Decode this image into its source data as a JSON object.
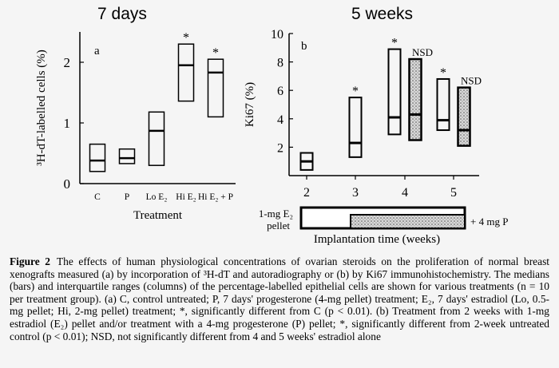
{
  "panel_titles": {
    "left": "7 days",
    "right": "5 weeks"
  },
  "chart_data": [
    {
      "type": "box",
      "panel_letter": "a",
      "ylabel": "³H-dT-labelled cells (%)",
      "xlabel": "Treatment",
      "ylim": [
        0,
        2.5
      ],
      "yticks": [
        0,
        1,
        2
      ],
      "categories": [
        "C",
        "P",
        "Lo E₂",
        "Hi E₂",
        "Hi E₂ + P"
      ],
      "boxes": [
        {
          "q1": 0.2,
          "median": 0.38,
          "q3": 0.65,
          "sig": ""
        },
        {
          "q1": 0.33,
          "median": 0.42,
          "q3": 0.57,
          "sig": ""
        },
        {
          "q1": 0.3,
          "median": 0.87,
          "q3": 1.18,
          "sig": ""
        },
        {
          "q1": 1.36,
          "median": 1.95,
          "q3": 2.3,
          "sig": "*"
        },
        {
          "q1": 1.1,
          "median": 1.83,
          "q3": 2.05,
          "sig": "*"
        }
      ]
    },
    {
      "type": "box",
      "panel_letter": "b",
      "ylabel": "Ki67 (%)",
      "xlabel": "Implantation time (weeks)",
      "ylim": [
        0,
        10
      ],
      "yticks": [
        2,
        4,
        6,
        8,
        10
      ],
      "categories": [
        "2",
        "3",
        "4",
        "5"
      ],
      "boxes": [
        {
          "group": "2",
          "q1": 0.4,
          "median": 1.0,
          "q3": 1.6,
          "shaded": false,
          "sig": ""
        },
        {
          "group": "3",
          "q1": 1.3,
          "median": 2.3,
          "q3": 5.5,
          "shaded": false,
          "sig": "*"
        },
        {
          "group": "4",
          "q1": 2.9,
          "median": 4.1,
          "q3": 8.9,
          "shaded": false,
          "sig": "*"
        },
        {
          "group": "4",
          "q1": 2.5,
          "median": 4.3,
          "q3": 8.2,
          "shaded": true,
          "sig": "NSD"
        },
        {
          "group": "5",
          "q1": 3.2,
          "median": 3.9,
          "q3": 6.8,
          "shaded": false,
          "sig": "*"
        },
        {
          "group": "5",
          "q1": 2.1,
          "median": 3.2,
          "q3": 6.2,
          "shaded": true,
          "sig": "NSD"
        }
      ],
      "treatment_bar": {
        "left_label_1": "1-mg E₂",
        "left_label_2": "pellet",
        "right_label": "+ 4 mg P"
      }
    }
  ],
  "caption": {
    "figure_label": "Figure 2",
    "text": "The effects of human physiological concentrations of ovarian steroids on the proliferation of normal breast xenografts measured (a) by incorporation of ³H-dT and autoradiography or (b) by Ki67 immunohistochemistry. The medians (bars) and interquartile ranges (columns) of the percentage-labelled epithelial cells are shown for various treatments (n = 10 per treatment group). (a) C, control untreated; P, 7 days' progesterone (4-mg pellet) treatment; E₂, 7 days' estradiol (Lo, 0.5-mg pellet; Hi, 2-mg pellet) treatment; *, significantly different from C (p < 0.01). (b) Treatment from 2 weeks with 1-mg estradiol (E₂) pellet and/or treatment with a 4-mg progesterone (P) pellet; *, significantly different from 2-week untreated control (p < 0.01); NSD, not significantly different from 4 and 5 weeks' estradiol alone"
  }
}
